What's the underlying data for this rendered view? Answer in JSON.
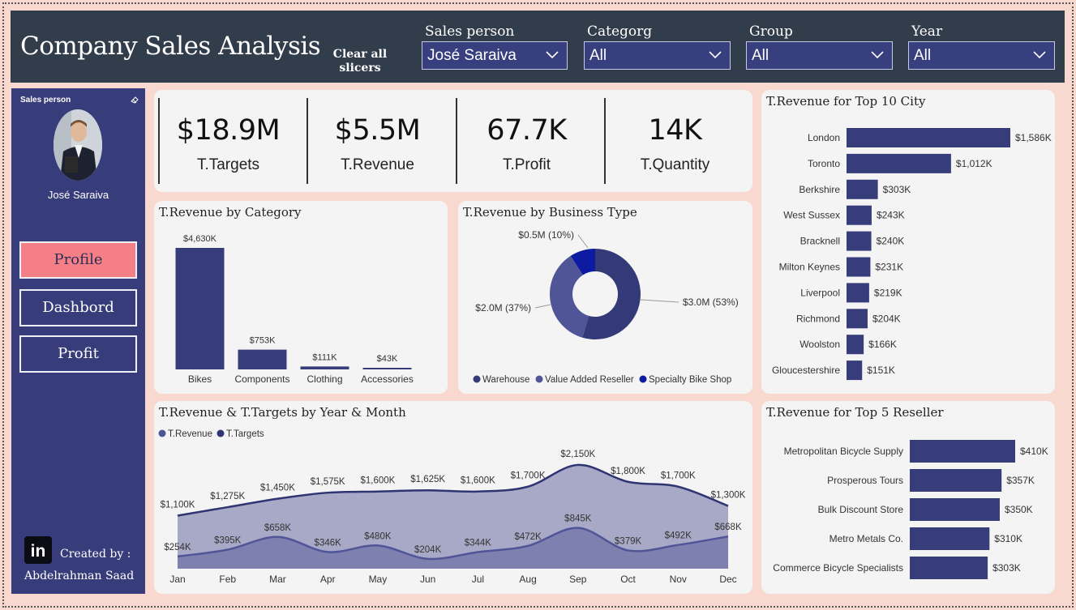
{
  "header": {
    "title": "Company Sales Analysis",
    "clear_button": "Clear all slicers",
    "slicers": [
      {
        "label": "Sales person",
        "value": "José Saraiva"
      },
      {
        "label": "Categorg",
        "value": "All"
      },
      {
        "label": "Group",
        "value": "All"
      },
      {
        "label": "Year",
        "value": "All"
      }
    ]
  },
  "sidebar": {
    "label": "Sales person",
    "person_name": "José Saraiva",
    "nav": [
      {
        "label": "Profile",
        "active": true
      },
      {
        "label": "Dashbord",
        "active": false
      },
      {
        "label": "Profit",
        "active": false
      }
    ],
    "created_by": "Created by :",
    "author": "Abdelrahman Saad",
    "linkedin_text": "in"
  },
  "kpis": [
    {
      "value": "$18.9M",
      "label": "T.Targets"
    },
    {
      "value": "$5.5M",
      "label": "T.Revenue"
    },
    {
      "value": "67.7K",
      "label": "T.Profit"
    },
    {
      "value": "14K",
      "label": "T.Quantity"
    }
  ],
  "colors": {
    "primary": "#373d7a",
    "header_bg": "#323d4c",
    "page_bg": "#f9d9cf",
    "accent": "#f57f86",
    "donut": [
      "#343a78",
      "#4f5596",
      "#0d1ba2"
    ]
  },
  "chart_data": [
    {
      "type": "bar",
      "title": "T.Revenue by Category",
      "categories": [
        "Bikes",
        "Components",
        "Clothing",
        "Accessories"
      ],
      "values": [
        4630,
        753,
        111,
        43
      ],
      "labels": [
        "$4,630K",
        "$753K",
        "$111K",
        "$43K"
      ],
      "units": "$K"
    },
    {
      "type": "pie",
      "title": "T.Revenue by Business Type",
      "categories": [
        "Warehouse",
        "Value Added Reseller",
        "Specialty Bike Shop"
      ],
      "values": [
        3.0,
        2.0,
        0.5
      ],
      "labels": [
        "$3.0M (53%)",
        "$2.0M (37%)",
        "$0.5M (10%)"
      ],
      "legend": [
        "Warehouse",
        "Value Added Reseller",
        "Specialty Bike Shop"
      ]
    },
    {
      "type": "bar",
      "orientation": "horizontal",
      "title": "T.Revenue for Top 10 City",
      "categories": [
        "London",
        "Toronto",
        "Berkshire",
        "West Sussex",
        "Bracknell",
        "Milton Keynes",
        "Liverpool",
        "Richmond",
        "Woolston",
        "Gloucestershire"
      ],
      "values": [
        1586,
        1012,
        303,
        243,
        240,
        231,
        219,
        204,
        166,
        151
      ],
      "labels": [
        "$1,586K",
        "$1,012K",
        "$303K",
        "$243K",
        "$240K",
        "$231K",
        "$219K",
        "$204K",
        "$166K",
        "$151K"
      ]
    },
    {
      "type": "area",
      "title": "T.Revenue & T.Targets by Year & Month",
      "categories": [
        "Jan",
        "Feb",
        "Mar",
        "Apr",
        "May",
        "Jun",
        "Jul",
        "Aug",
        "Sep",
        "Oct",
        "Nov",
        "Dec"
      ],
      "legend": [
        "T.Revenue",
        "T.Targets"
      ],
      "series": [
        {
          "name": "T.Targets",
          "values": [
            1100,
            1275,
            1450,
            1575,
            1600,
            1625,
            1600,
            1700,
            2150,
            1800,
            1700,
            1300
          ],
          "labels": [
            "$1,100K",
            "$1,275K",
            "$1,450K",
            "$1,575K",
            "$1,600K",
            "$1,625K",
            "$1,600K",
            "$1,700K",
            "$2,150K",
            "$1,800K",
            "$1,700K",
            "$1,300K"
          ]
        },
        {
          "name": "T.Revenue",
          "values": [
            254,
            395,
            658,
            346,
            480,
            204,
            344,
            472,
            845,
            379,
            492,
            668
          ],
          "labels": [
            "$254K",
            "$395K",
            "$658K",
            "$346K",
            "$480K",
            "$204K",
            "$344K",
            "$472K",
            "$845K",
            "$379K",
            "$492K",
            "$668K"
          ]
        }
      ],
      "ylim": [
        0,
        2300
      ]
    },
    {
      "type": "bar",
      "orientation": "horizontal",
      "title": "T.Revenue for Top 5 Reseller",
      "categories": [
        "Metropolitan Bicycle Supply",
        "Prosperous Tours",
        "Bulk Discount Store",
        "Metro Metals Co.",
        "Commerce Bicycle Specialists"
      ],
      "values": [
        410,
        357,
        350,
        310,
        303
      ],
      "labels": [
        "$410K",
        "$357K",
        "$350K",
        "$310K",
        "$303K"
      ]
    }
  ]
}
